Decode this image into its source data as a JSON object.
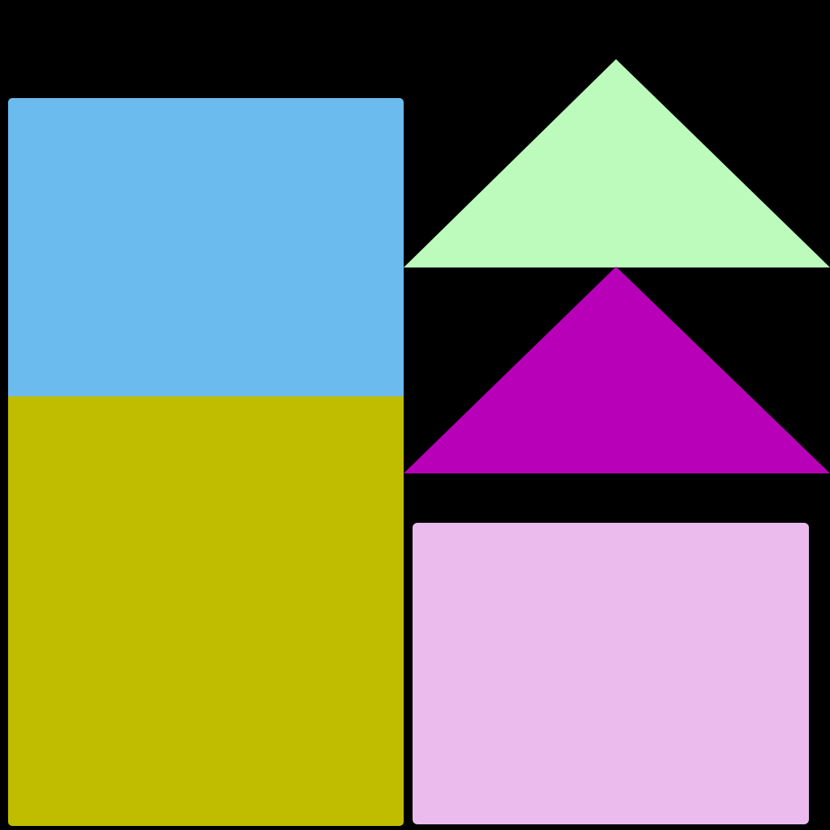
{
  "scene": {
    "background_color": "#000000",
    "shapes": [
      {
        "name": "blue-rectangle",
        "kind": "rectangle",
        "color": "#6bbbef"
      },
      {
        "name": "olive-rectangle",
        "kind": "rectangle",
        "color": "#c0bd00"
      },
      {
        "name": "pink-rectangle",
        "kind": "rectangle",
        "color": "#ecbbee"
      },
      {
        "name": "mint-triangle",
        "kind": "triangle",
        "color": "#bcfbbc"
      },
      {
        "name": "magenta-triangle",
        "kind": "triangle",
        "color": "#b800b8"
      }
    ]
  }
}
